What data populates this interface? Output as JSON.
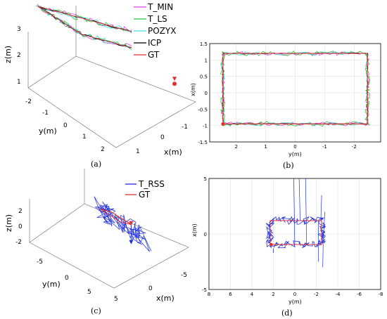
{
  "panels": [
    {
      "id": "a",
      "caption": "(a)",
      "xlabel": "x(m)",
      "ylabel": "y(m)",
      "zlabel": "z(m)",
      "x_ticks": [
        "1",
        "0",
        "-1"
      ],
      "y_ticks": [
        "-2",
        "-1",
        "0",
        "1",
        "2"
      ],
      "z_ticks": [
        "1",
        "2",
        "3"
      ]
    },
    {
      "id": "b",
      "caption": "(b)",
      "xlabel": "y(m)",
      "ylabel": "x(m)",
      "x_ticks": [
        "2",
        "1",
        "0",
        "-1",
        "-2"
      ],
      "y_ticks": [
        "1.5",
        "1",
        "0.5",
        "0",
        "-0.5",
        "-1",
        "-1.5"
      ]
    },
    {
      "id": "c",
      "caption": "(c)",
      "xlabel": "x(m)",
      "ylabel": "y(m)",
      "zlabel": "z(m)",
      "x_ticks": [
        "5",
        "0",
        "-5"
      ],
      "y_ticks": [
        "-5",
        "0",
        "5"
      ],
      "z_ticks": [
        "2",
        "0",
        "-2"
      ]
    },
    {
      "id": "d",
      "caption": "(d)",
      "xlabel": "y(m)",
      "ylabel": "x(m)",
      "x_ticks": [
        "8",
        "6",
        "4",
        "2",
        "0",
        "-2",
        "-4",
        "-6",
        "-8"
      ],
      "y_ticks": [
        "5",
        "0",
        "-5"
      ]
    }
  ],
  "legend_a": [
    {
      "label": "T_MIN",
      "color": "#e040e0"
    },
    {
      "label": "T_LS",
      "color": "#30c030"
    },
    {
      "label": "POZYX",
      "color": "#40d8e0"
    },
    {
      "label": "ICP",
      "color": "#000000"
    },
    {
      "label": "GT",
      "color": "#e03030"
    }
  ],
  "legend_c": [
    {
      "label": "T_RSS",
      "color": "#2030e0"
    },
    {
      "label": "GT",
      "color": "#e03030"
    }
  ],
  "chart_data": [
    {
      "type": "line",
      "panel": "a",
      "projection": "3d",
      "x_range": [
        -2,
        2
      ],
      "y_range": [
        -2.5,
        2.5
      ],
      "z_range": [
        1,
        3
      ],
      "series": [
        {
          "name": "T_MIN",
          "color": "#e040e0"
        },
        {
          "name": "T_LS",
          "color": "#30c030"
        },
        {
          "name": "POZYX",
          "color": "#40d8e0"
        },
        {
          "name": "ICP",
          "color": "#000000"
        },
        {
          "name": "GT",
          "color": "#e03030"
        }
      ]
    },
    {
      "type": "line",
      "panel": "b",
      "x_range": [
        2.9,
        -2.9
      ],
      "y_range": [
        -1.5,
        1.5
      ],
      "path_corners_y": [
        2.45,
        -2.45
      ],
      "path_corners_x": [
        -0.95,
        1.2
      ],
      "series": [
        {
          "name": "T_MIN",
          "color": "#e040e0",
          "jitter": 0.06,
          "seed": 3
        },
        {
          "name": "T_LS",
          "color": "#30c030",
          "jitter": 0.08,
          "seed": 7
        },
        {
          "name": "POZYX",
          "color": "#40d8e0",
          "jitter": 0.05,
          "seed": 11
        },
        {
          "name": "ICP",
          "color": "#000000",
          "jitter": 0.015,
          "seed": 5
        },
        {
          "name": "GT",
          "color": "#e03030",
          "jitter": 0.0,
          "seed": 1
        }
      ]
    },
    {
      "type": "line",
      "panel": "c",
      "projection": "3d",
      "x_range": [
        -5,
        5
      ],
      "y_range": [
        -7,
        7
      ],
      "z_range": [
        -3,
        3
      ],
      "series": [
        {
          "name": "T_RSS",
          "color": "#2030e0"
        },
        {
          "name": "GT",
          "color": "#e03030"
        }
      ]
    },
    {
      "type": "line",
      "panel": "d",
      "x_range": [
        8,
        -8
      ],
      "y_range": [
        -5,
        5
      ],
      "path_corners_y": [
        2.3,
        -2.5
      ],
      "path_corners_x": [
        -0.95,
        1.2
      ],
      "series": [
        {
          "name": "T_RSS",
          "color": "#2030e0",
          "jitter": 0.35,
          "seed": 13
        },
        {
          "name": "GT",
          "color": "#e03030",
          "jitter": 0.0,
          "seed": 1
        }
      ]
    }
  ]
}
